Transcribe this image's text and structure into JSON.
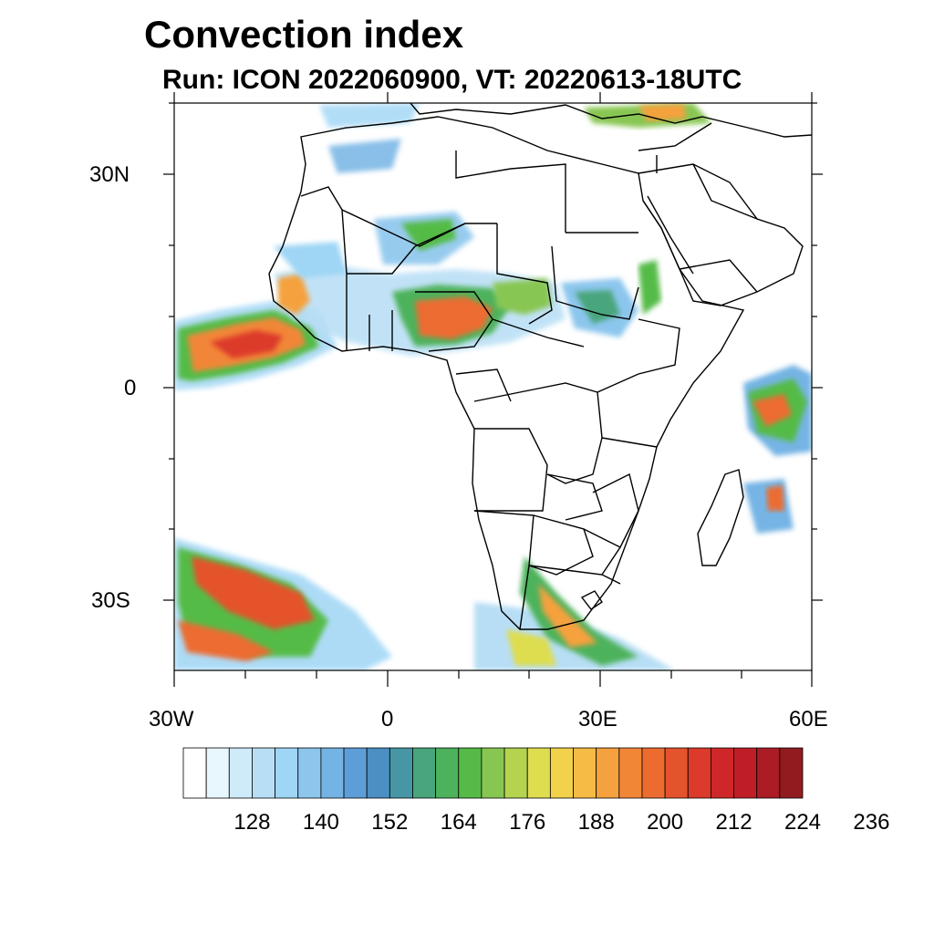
{
  "title": "Convection index",
  "subtitle": "Run: ICON 2022060900,  VT: 20220613-18UTC",
  "map": {
    "lat_labels": [
      "30N",
      "0",
      "30S"
    ],
    "lon_labels": [
      "30W",
      "0",
      "30E",
      "60E"
    ],
    "lon_range": [
      -30,
      60
    ],
    "lat_range": [
      -40,
      40
    ]
  },
  "colorbar": {
    "tick_labels": [
      "128",
      "140",
      "152",
      "164",
      "176",
      "188",
      "200",
      "212",
      "224",
      "236"
    ],
    "colors": [
      "#ffffff",
      "#e8f6fd",
      "#cfeaf9",
      "#b7def5",
      "#9fd5f5",
      "#8cc6ed",
      "#74b4e4",
      "#5e9ed8",
      "#4b8fc3",
      "#4796a5",
      "#49a57c",
      "#4db25c",
      "#55bb46",
      "#88c652",
      "#b4d34f",
      "#dedd50",
      "#f2d24b",
      "#f6bb44",
      "#f5a13e",
      "#f28637",
      "#ec6c30",
      "#e4532b",
      "#dc3a2a",
      "#cf2729",
      "#bf1e27",
      "#ab1c24",
      "#921b1f"
    ]
  }
}
